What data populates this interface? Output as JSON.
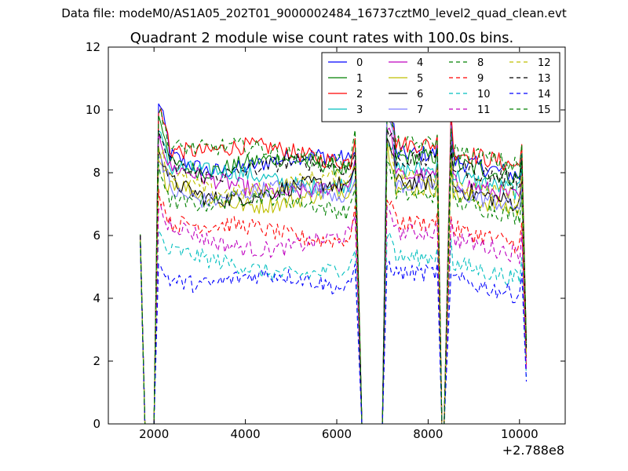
{
  "suptitle": "Data file: modeM0/AS1A05_202T01_9000002484_16737cztM0_level2_quad_clean.evt",
  "chart_data": {
    "type": "line",
    "title": "Quadrant 2 module wise count rates with 100.0s bins.",
    "xlabel": "",
    "ylabel": "",
    "x_offset_label": "+2.788e8",
    "xlim": [
      1000,
      11000
    ],
    "ylim": [
      0,
      12
    ],
    "xticks": [
      2000,
      4000,
      6000,
      8000,
      10000
    ],
    "yticks": [
      0,
      2,
      4,
      6,
      8,
      10,
      12
    ],
    "grid": false,
    "legend_location": "top-right",
    "legend_columns": 4,
    "series": [
      {
        "name": "0",
        "color": "#0000ff",
        "dash": false,
        "level": 8.3,
        "seg1_peak": 10.3,
        "seg2_peak": 10.2,
        "seg3_peak": 9.6
      },
      {
        "name": "1",
        "color": "#008000",
        "dash": false,
        "level": 8.2,
        "seg1_peak": 9.9,
        "seg2_peak": 9.9,
        "seg3_peak": 9.2
      },
      {
        "name": "2",
        "color": "#ff0000",
        "dash": false,
        "level": 8.6,
        "seg1_peak": 10.1,
        "seg2_peak": 10.3,
        "seg3_peak": 10.0
      },
      {
        "name": "3",
        "color": "#00bfbf",
        "dash": false,
        "level": 7.8,
        "seg1_peak": 9.3,
        "seg2_peak": 9.2,
        "seg3_peak": 8.8
      },
      {
        "name": "4",
        "color": "#bf00bf",
        "dash": false,
        "level": 7.6,
        "seg1_peak": 9.4,
        "seg2_peak": 9.6,
        "seg3_peak": 9.1
      },
      {
        "name": "5",
        "color": "#bfbf00",
        "dash": false,
        "level": 7.2,
        "seg1_peak": 8.3,
        "seg2_peak": 8.9,
        "seg3_peak": 8.4
      },
      {
        "name": "6",
        "color": "#000000",
        "dash": false,
        "level": 7.4,
        "seg1_peak": 8.9,
        "seg2_peak": 9.2,
        "seg3_peak": 8.9
      },
      {
        "name": "7",
        "color": "#7b7bff",
        "dash": false,
        "level": 7.3,
        "seg1_peak": 8.7,
        "seg2_peak": 10.4,
        "seg3_peak": 9.5
      },
      {
        "name": "8",
        "color": "#008000",
        "dash": true,
        "level": 7.0,
        "seg1_peak": 8.1,
        "seg2_peak": 8.4,
        "seg3_peak": 8.2
      },
      {
        "name": "9",
        "color": "#ff0000",
        "dash": true,
        "level": 6.1,
        "seg1_peak": 7.4,
        "seg2_peak": 7.3,
        "seg3_peak": 6.6
      },
      {
        "name": "10",
        "color": "#00bfbf",
        "dash": true,
        "level": 5.0,
        "seg1_peak": 6.1,
        "seg2_peak": 6.1,
        "seg3_peak": 5.9
      },
      {
        "name": "11",
        "color": "#bf00bf",
        "dash": true,
        "level": 5.8,
        "seg1_peak": 7.0,
        "seg2_peak": 7.0,
        "seg3_peak": 6.5
      },
      {
        "name": "12",
        "color": "#bfbf00",
        "dash": true,
        "level": 7.6,
        "seg1_peak": 8.9,
        "seg2_peak": 9.0,
        "seg3_peak": 8.5
      },
      {
        "name": "13",
        "color": "#000000",
        "dash": true,
        "level": 8.1,
        "seg1_peak": 9.3,
        "seg2_peak": 9.4,
        "seg3_peak": 8.9
      },
      {
        "name": "14",
        "color": "#0000ff",
        "dash": true,
        "level": 4.5,
        "seg1_peak": 5.0,
        "seg2_peak": 5.1,
        "seg3_peak": 4.8
      },
      {
        "name": "15",
        "color": "#008000",
        "dash": true,
        "level": 8.6,
        "seg1_peak": 10.0,
        "seg2_peak": 9.9,
        "seg3_peak": 9.4
      }
    ],
    "segments": [
      {
        "start": 2000,
        "end": 6400,
        "first_point": 5.9
      },
      {
        "start": 7100,
        "end": 8200
      },
      {
        "start": 8500,
        "end": 10100
      }
    ],
    "gaps": [
      {
        "start": 1800,
        "end": 2000
      },
      {
        "start": 6500,
        "end": 7000
      },
      {
        "start": 8300,
        "end": 8400
      }
    ]
  }
}
